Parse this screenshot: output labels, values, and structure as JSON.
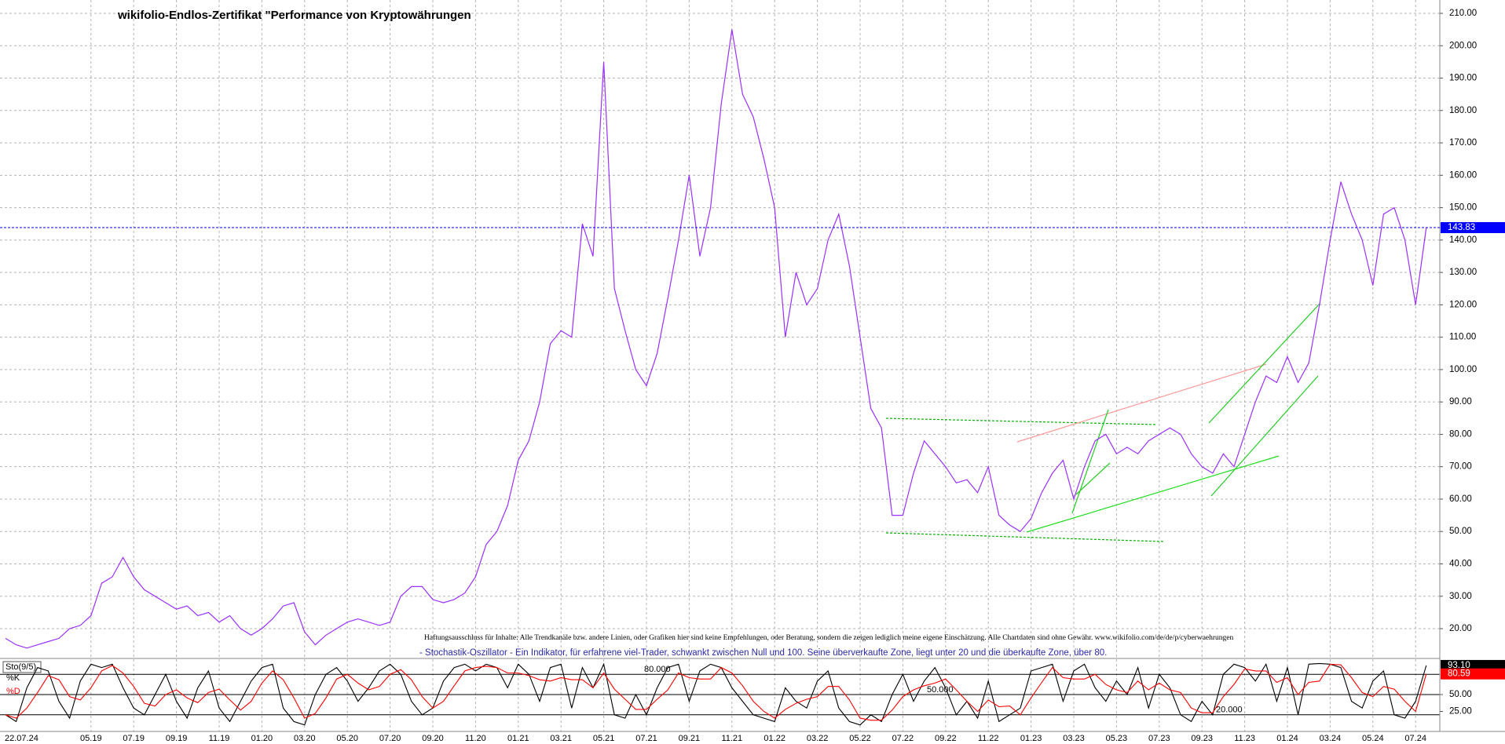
{
  "chart_data": [
    {
      "type": "line",
      "title": "wikifolio-Endlos-Zertifikat \"Performance von Kryptowährungen",
      "annotations": [
        "Haftungsausschluss für Inhalte: Alle Trendkanäle bzw. andere Linien, oder Grafiken hier sind keine Empfehlungen, oder Beratung, sondern die zeigen lediglich meine eigene Einschätzung. Alle Chartdaten sind ohne Gewähr.  www.wikifolio.com/de/de/p/cyberwaehrungen"
      ],
      "categories": [
        null,
        null,
        null,
        null,
        null,
        null,
        null,
        null,
        "05.19",
        null,
        null,
        null,
        "07.19",
        null,
        null,
        null,
        "09.19",
        null,
        null,
        null,
        "11.19",
        null,
        null,
        null,
        "01.20",
        null,
        null,
        null,
        "03.20",
        null,
        null,
        null,
        "05.20",
        null,
        null,
        null,
        "07.20",
        null,
        null,
        null,
        "09.20",
        null,
        null,
        null,
        "11.20",
        null,
        null,
        null,
        "01.21",
        null,
        null,
        null,
        "03.21",
        null,
        null,
        null,
        "05.21",
        null,
        null,
        null,
        "07.21",
        null,
        null,
        null,
        "09.21",
        null,
        null,
        null,
        "11.21",
        null,
        null,
        null,
        "01.22",
        null,
        null,
        null,
        "03.22",
        null,
        null,
        null,
        "05.22",
        null,
        null,
        null,
        "07.22",
        null,
        null,
        null,
        "09.22",
        null,
        null,
        null,
        "11.22",
        null,
        null,
        null,
        "01.23",
        null,
        null,
        null,
        "03.23",
        null,
        null,
        null,
        "05.23",
        null,
        null,
        null,
        "07.23",
        null,
        null,
        null,
        "09.23",
        null,
        null,
        null,
        "11.23",
        null,
        null,
        null,
        "01.24",
        null,
        null,
        null,
        "03.24",
        null,
        null,
        null,
        "05.24",
        null,
        null,
        null,
        "07.24",
        null
      ],
      "values": [
        17,
        15,
        14,
        15,
        16,
        17,
        20,
        21,
        24,
        34,
        36,
        42,
        36,
        32,
        30,
        28,
        26,
        27,
        24,
        25,
        22,
        24,
        20,
        18,
        20,
        23,
        27,
        28,
        19,
        15,
        18,
        20,
        22,
        23,
        22,
        21,
        22,
        30,
        33,
        33,
        29,
        28,
        29,
        31,
        36,
        46,
        50,
        58,
        72,
        78,
        90,
        108,
        112,
        110,
        145,
        135,
        195,
        125,
        112,
        100,
        95,
        105,
        122,
        140,
        160,
        135,
        150,
        182,
        205,
        185,
        178,
        165,
        150,
        110,
        130,
        120,
        125,
        140,
        148,
        132,
        110,
        88,
        82,
        55,
        55,
        68,
        78,
        74,
        70,
        65,
        66,
        62,
        70,
        55,
        52,
        50,
        54,
        62,
        68,
        72,
        60,
        70,
        78,
        80,
        74,
        76,
        74,
        78,
        80,
        82,
        80,
        74,
        70,
        68,
        74,
        70,
        80,
        90,
        98,
        96,
        104,
        96,
        102,
        120,
        140,
        158,
        148,
        140,
        126,
        148,
        150,
        140,
        120,
        143.83
      ],
      "color": "#9b30ff",
      "current_line": {
        "value": 143.83,
        "label": "143.83",
        "color": "#0000ff"
      },
      "ylim": [
        20,
        210
      ],
      "yticks": [
        {
          "value": 20,
          "label": "20.00"
        },
        {
          "value": 30,
          "label": "30.00"
        },
        {
          "value": 40,
          "label": "40.00"
        },
        {
          "value": 50,
          "label": "50.00"
        },
        {
          "value": 60,
          "label": "60.00"
        },
        {
          "value": 70,
          "label": "70.00"
        },
        {
          "value": 80,
          "label": "80.00"
        },
        {
          "value": 90,
          "label": "90.00"
        },
        {
          "value": 100,
          "label": "100.00"
        },
        {
          "value": 110,
          "label": "110.00"
        },
        {
          "value": 120,
          "label": "120.00"
        },
        {
          "value": 130,
          "label": "130.00"
        },
        {
          "value": 140,
          "label": "140.00"
        },
        {
          "value": 150,
          "label": "150.00"
        },
        {
          "value": 160,
          "label": "160.00"
        },
        {
          "value": 170,
          "label": "170.00"
        },
        {
          "value": 180,
          "label": "180.00"
        },
        {
          "value": 190,
          "label": "190.00"
        },
        {
          "value": 200,
          "label": "200.00"
        },
        {
          "value": 210,
          "label": "210.00"
        }
      ],
      "grid": true
    },
    {
      "type": "line",
      "title": "- Stochastik-Oszillator - Ein Indikator, für erfahrene viel-Trader, schwankt zwischen Null und 100. Seine überverkaufte Zone, liegt unter 20 und die überkaufte Zone, über 80.",
      "indicator_label": "Sto(9/5)",
      "date_label": "22.07.24",
      "series": [
        {
          "name": "%K",
          "color": "#000000",
          "last_label": "93.10",
          "values": [
            20,
            10,
            60,
            90,
            85,
            40,
            15,
            70,
            95,
            90,
            95,
            60,
            30,
            20,
            50,
            80,
            40,
            15,
            60,
            85,
            30,
            10,
            40,
            70,
            90,
            95,
            30,
            10,
            5,
            50,
            80,
            90,
            70,
            40,
            60,
            85,
            95,
            80,
            40,
            20,
            30,
            70,
            90,
            95,
            85,
            95,
            90,
            60,
            95,
            80,
            40,
            90,
            95,
            30,
            90,
            60,
            95,
            20,
            15,
            50,
            20,
            60,
            90,
            95,
            40,
            85,
            95,
            90,
            60,
            40,
            20,
            15,
            10,
            60,
            40,
            30,
            70,
            85,
            30,
            10,
            5,
            20,
            10,
            50,
            80,
            40,
            70,
            90,
            60,
            20,
            40,
            15,
            70,
            10,
            20,
            30,
            85,
            90,
            95,
            40,
            85,
            95,
            60,
            40,
            70,
            50,
            90,
            30,
            80,
            60,
            20,
            10,
            40,
            20,
            80,
            95,
            90,
            70,
            95,
            40,
            90,
            20,
            95,
            96,
            95,
            90,
            40,
            30,
            70,
            85,
            20,
            15,
            40,
            93.1
          ]
        },
        {
          "name": "%D",
          "color": "#ff0000",
          "last_label": "80.59",
          "values": [
            20,
            15,
            30,
            53,
            78,
            72,
            47,
            42,
            60,
            85,
            93,
            82,
            62,
            37,
            33,
            50,
            57,
            45,
            38,
            53,
            58,
            42,
            27,
            40,
            67,
            85,
            72,
            45,
            15,
            22,
            45,
            73,
            80,
            67,
            57,
            62,
            80,
            87,
            72,
            47,
            30,
            40,
            63,
            85,
            90,
            92,
            90,
            82,
            82,
            78,
            72,
            70,
            75,
            72,
            72,
            60,
            82,
            58,
            43,
            28,
            28,
            43,
            57,
            82,
            75,
            73,
            73,
            90,
            82,
            63,
            40,
            25,
            15,
            28,
            37,
            43,
            47,
            62,
            62,
            42,
            15,
            12,
            12,
            27,
            47,
            57,
            63,
            67,
            73,
            57,
            40,
            25,
            42,
            32,
            33,
            20,
            45,
            68,
            90,
            75,
            73,
            73,
            80,
            65,
            57,
            53,
            70,
            57,
            67,
            57,
            53,
            30,
            23,
            23,
            47,
            65,
            88,
            85,
            85,
            68,
            75,
            50,
            68,
            70,
            95,
            94,
            75,
            53,
            47,
            62,
            58,
            40,
            25,
            80.59
          ]
        }
      ],
      "levels": [
        {
          "value": 80,
          "label": "80.000"
        },
        {
          "value": 50,
          "label": "50.000"
        },
        {
          "value": 20,
          "label": "20.000"
        }
      ],
      "ylim": [
        0,
        100
      ],
      "yticks": [
        {
          "value": 25,
          "label": "25.00"
        },
        {
          "value": 50,
          "label": "50.00"
        }
      ]
    }
  ]
}
